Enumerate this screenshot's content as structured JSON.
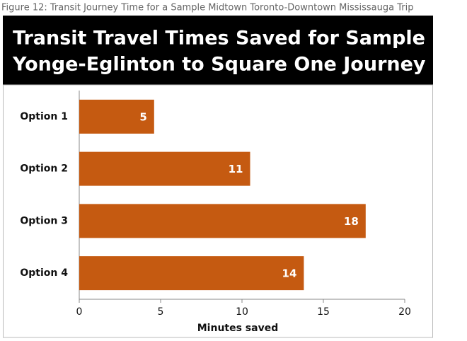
{
  "chart_data": {
    "type": "hbar",
    "caption": "Figure 12: Transit Journey Time for a Sample Midtown Toronto-Downtown Mississauga Trip",
    "title": [
      "Transit Travel Times Saved for Sample",
      "Yonge-Eglinton to Square One Journey"
    ],
    "categories": [
      "Option 1",
      "Option 2",
      "Option 3",
      "Option 4"
    ],
    "values": [
      4.6,
      10.5,
      17.6,
      13.8
    ],
    "value_labels": [
      "5",
      "11",
      "18",
      "14"
    ],
    "color": "#c55a11",
    "x_label": "Minutes saved",
    "xlim": [
      0,
      20
    ],
    "xticks": [
      0,
      5,
      10,
      15,
      20
    ],
    "grid": false
  }
}
